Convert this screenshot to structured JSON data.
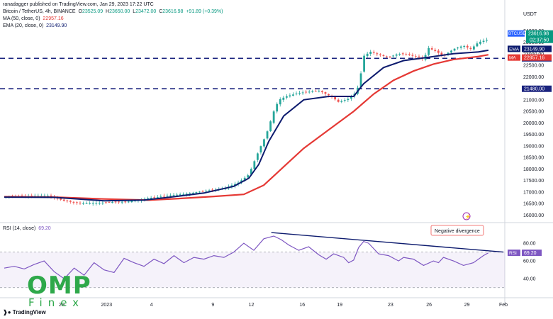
{
  "header": {
    "published": "ranadagger published on TradingView.com, Jan 29, 2023 17:22 UTC",
    "symbol_line": "Bitcoin / TetherUS, 4h, BINANCE",
    "ohlc": {
      "o_label": "O",
      "o": "23525.09",
      "h_label": "H",
      "h": "23650.00",
      "l_label": "L",
      "l": "23472.00",
      "c_label": "C",
      "c": "23616.98",
      "change": "+91.89 (+0.39%)"
    },
    "ma": {
      "label": "MA (50, close, 0)",
      "value": "22957.16"
    },
    "ema": {
      "label": "EMA (20, close, 0)",
      "value": "23149.90"
    }
  },
  "rsi_header": {
    "label": "RSI (14, close)",
    "value": "69.20"
  },
  "annotation": "Negative divergence",
  "tradingview_logo": "TradingView",
  "watermark": {
    "line1": "OMP",
    "line2": "Finex"
  },
  "colors": {
    "up": "#26a69a",
    "down": "#ef5350",
    "ema": "#0d1b6e",
    "ma": "#e53935",
    "level": "#1a237e",
    "rsi": "#7e57c2",
    "trend": "#0d1b6e",
    "watermark": "#2ea84a"
  },
  "chart_data": {
    "type": "candlestick",
    "currency_label": "USDT",
    "symbol_tag": "BTCUSDT",
    "last_price": "23616.98",
    "countdown": "02:37:50",
    "price_axis": {
      "ylim": [
        15800,
        24100
      ],
      "ticks": [
        16000,
        16500,
        17000,
        17500,
        18000,
        18500,
        19000,
        19500,
        20000,
        20500,
        21000,
        21500,
        22000,
        22500,
        23000,
        23500,
        24000
      ]
    },
    "levels": [
      {
        "label": "22800.00",
        "value": 22800
      },
      {
        "label": "21480.00",
        "value": 21480
      }
    ],
    "tags": [
      {
        "label": "EMA",
        "value": "23149.90",
        "color": "#0d1b6e"
      },
      {
        "label": "MA",
        "value": "22957.16",
        "color": "#e53935"
      }
    ],
    "x_ticks": [
      {
        "label": "29",
        "t": 0.115
      },
      {
        "label": "2023",
        "t": 0.205
      },
      {
        "label": "4",
        "t": 0.295
      },
      {
        "label": "9",
        "t": 0.418
      },
      {
        "label": "12",
        "t": 0.495
      },
      {
        "label": "16",
        "t": 0.597
      },
      {
        "label": "19",
        "t": 0.672
      },
      {
        "label": "23",
        "t": 0.774
      },
      {
        "label": "26",
        "t": 0.851
      },
      {
        "label": "29",
        "t": 0.927
      },
      {
        "label": "Feb",
        "t": 1.0
      }
    ],
    "price_path": [
      [
        0,
        16810
      ],
      [
        0.05,
        16830
      ],
      [
        0.09,
        16840
      ],
      [
        0.12,
        16620
      ],
      [
        0.15,
        16520
      ],
      [
        0.18,
        16520
      ],
      [
        0.21,
        16560
      ],
      [
        0.25,
        16590
      ],
      [
        0.29,
        16740
      ],
      [
        0.33,
        16850
      ],
      [
        0.37,
        16940
      ],
      [
        0.4,
        17050
      ],
      [
        0.44,
        17150
      ],
      [
        0.47,
        17420
      ],
      [
        0.49,
        17760
      ],
      [
        0.51,
        18800
      ],
      [
        0.525,
        19500
      ],
      [
        0.54,
        20500
      ],
      [
        0.55,
        21000
      ],
      [
        0.565,
        21150
      ],
      [
        0.59,
        21300
      ],
      [
        0.61,
        21350
      ],
      [
        0.63,
        21400
      ],
      [
        0.655,
        21150
      ],
      [
        0.67,
        20900
      ],
      [
        0.69,
        21050
      ],
      [
        0.7,
        21200
      ],
      [
        0.71,
        21600
      ],
      [
        0.715,
        22200
      ],
      [
        0.72,
        22900
      ],
      [
        0.735,
        23100
      ],
      [
        0.75,
        22950
      ],
      [
        0.77,
        22850
      ],
      [
        0.79,
        23000
      ],
      [
        0.81,
        22950
      ],
      [
        0.83,
        22850
      ],
      [
        0.84,
        22750
      ],
      [
        0.85,
        23250
      ],
      [
        0.865,
        23100
      ],
      [
        0.88,
        22900
      ],
      [
        0.9,
        23200
      ],
      [
        0.92,
        23350
      ],
      [
        0.935,
        23200
      ],
      [
        0.95,
        23500
      ],
      [
        0.97,
        23616.98
      ]
    ],
    "ema20": [
      [
        0,
        16780
      ],
      [
        0.1,
        16770
      ],
      [
        0.2,
        16620
      ],
      [
        0.28,
        16650
      ],
      [
        0.34,
        16800
      ],
      [
        0.4,
        16960
      ],
      [
        0.46,
        17250
      ],
      [
        0.49,
        17600
      ],
      [
        0.51,
        18200
      ],
      [
        0.53,
        19200
      ],
      [
        0.56,
        20300
      ],
      [
        0.6,
        21000
      ],
      [
        0.65,
        21150
      ],
      [
        0.7,
        21150
      ],
      [
        0.72,
        21700
      ],
      [
        0.76,
        22400
      ],
      [
        0.8,
        22700
      ],
      [
        0.85,
        22850
      ],
      [
        0.9,
        23000
      ],
      [
        0.95,
        23080
      ],
      [
        0.97,
        23149.9
      ]
    ],
    "ma50": [
      [
        0,
        16800
      ],
      [
        0.1,
        16780
      ],
      [
        0.2,
        16700
      ],
      [
        0.29,
        16650
      ],
      [
        0.35,
        16720
      ],
      [
        0.42,
        16810
      ],
      [
        0.48,
        16900
      ],
      [
        0.52,
        17300
      ],
      [
        0.56,
        18100
      ],
      [
        0.6,
        18900
      ],
      [
        0.65,
        19700
      ],
      [
        0.7,
        20500
      ],
      [
        0.74,
        21250
      ],
      [
        0.78,
        21850
      ],
      [
        0.82,
        22250
      ],
      [
        0.86,
        22550
      ],
      [
        0.9,
        22750
      ],
      [
        0.95,
        22880
      ],
      [
        0.97,
        22957.16
      ]
    ],
    "rsi": {
      "ylim": [
        25,
        100
      ],
      "ticks": [
        40,
        60,
        80
      ],
      "band": [
        30,
        70
      ],
      "value": "69.20",
      "path": [
        [
          0,
          52
        ],
        [
          0.02,
          54
        ],
        [
          0.04,
          51
        ],
        [
          0.06,
          56
        ],
        [
          0.08,
          60
        ],
        [
          0.1,
          48
        ],
        [
          0.12,
          40
        ],
        [
          0.14,
          52
        ],
        [
          0.16,
          44
        ],
        [
          0.18,
          58
        ],
        [
          0.2,
          50
        ],
        [
          0.22,
          47
        ],
        [
          0.24,
          63
        ],
        [
          0.26,
          58
        ],
        [
          0.28,
          54
        ],
        [
          0.3,
          62
        ],
        [
          0.32,
          57
        ],
        [
          0.34,
          66
        ],
        [
          0.36,
          58
        ],
        [
          0.38,
          64
        ],
        [
          0.4,
          62
        ],
        [
          0.42,
          66
        ],
        [
          0.44,
          64
        ],
        [
          0.46,
          70
        ],
        [
          0.48,
          80
        ],
        [
          0.5,
          72
        ],
        [
          0.52,
          85
        ],
        [
          0.54,
          88
        ],
        [
          0.555,
          84
        ],
        [
          0.57,
          78
        ],
        [
          0.59,
          72
        ],
        [
          0.61,
          76
        ],
        [
          0.63,
          67
        ],
        [
          0.645,
          62
        ],
        [
          0.66,
          68
        ],
        [
          0.68,
          64
        ],
        [
          0.69,
          58
        ],
        [
          0.7,
          61
        ],
        [
          0.71,
          75
        ],
        [
          0.72,
          82
        ],
        [
          0.73,
          80
        ],
        [
          0.75,
          68
        ],
        [
          0.77,
          66
        ],
        [
          0.79,
          60
        ],
        [
          0.8,
          64
        ],
        [
          0.82,
          62
        ],
        [
          0.84,
          55
        ],
        [
          0.86,
          60
        ],
        [
          0.87,
          58
        ],
        [
          0.88,
          64
        ],
        [
          0.9,
          60
        ],
        [
          0.92,
          55
        ],
        [
          0.94,
          58
        ],
        [
          0.96,
          66
        ],
        [
          0.97,
          69.2
        ]
      ],
      "divergence_line": [
        [
          0.535,
          92
        ],
        [
          1.0,
          70
        ]
      ]
    }
  }
}
